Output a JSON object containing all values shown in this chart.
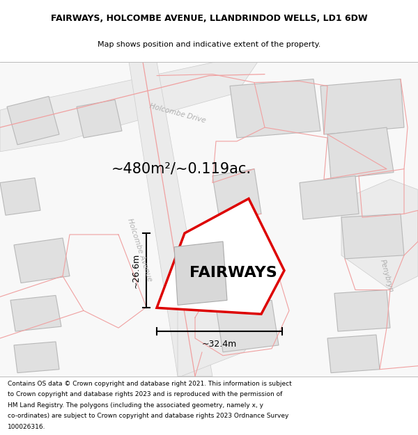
{
  "title_line1": "FAIRWAYS, HOLCOMBE AVENUE, LLANDRINDOD WELLS, LD1 6DW",
  "title_line2": "Map shows position and indicative extent of the property.",
  "area_label": "~480m²/~0.119ac.",
  "property_label": "FAIRWAYS",
  "dim_horizontal": "~32.4m",
  "dim_vertical": "~26.6m",
  "road_label_left": "Holcombe Avenue",
  "road_label_top": "Holcombe Drive",
  "road_label_right": "Penybryn",
  "footer_lines": [
    "Contains OS data © Crown copyright and database right 2021. This information is subject",
    "to Crown copyright and database rights 2023 and is reproduced with the permission of",
    "HM Land Registry. The polygons (including the associated geometry, namely x, y",
    "co-ordinates) are subject to Crown copyright and database rights 2023 Ordnance Survey",
    "100026316."
  ],
  "bg_color": "#ffffff",
  "map_bg": "#ffffff",
  "plot_fill": "#ffffff",
  "plot_edge": "#dd0000",
  "building_fill": "#e0e0e0",
  "building_stroke": "#b8b8b8",
  "road_fill": "#ebebeb",
  "boundary_color": "#f0a0a0",
  "dim_line_color": "#000000",
  "title_fontsize": 9.0,
  "subtitle_fontsize": 8.0,
  "area_fontsize": 15,
  "property_fontsize": 16,
  "footer_fontsize": 6.5,
  "road_label_fontsize": 7.5,
  "dim_fontsize": 9,
  "road_label_color": "#b0b0b0"
}
